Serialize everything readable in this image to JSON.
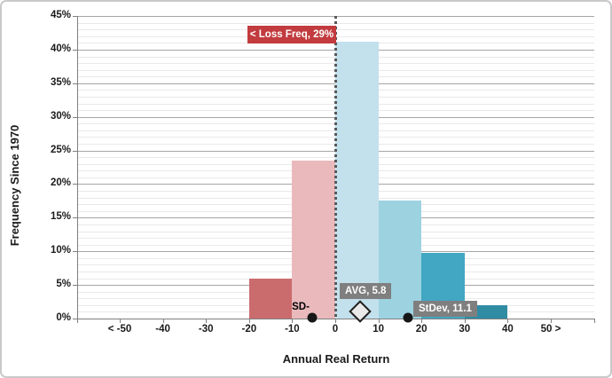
{
  "frame": {
    "background": "#FFFFFF",
    "border_color": "#C9C9C9"
  },
  "chart_data": {
    "type": "bar",
    "subtype": "histogram",
    "title": "",
    "xlabel": "Annual Real Return",
    "ylabel": "Frequency Since 1970",
    "x_tick_labels": [
      "< -50",
      "-40",
      "-30",
      "-20",
      "-10",
      "0",
      "10",
      "20",
      "30",
      "40",
      "50 >"
    ],
    "x_tick_values": [
      -50,
      -40,
      -30,
      -20,
      -10,
      0,
      10,
      20,
      30,
      40,
      50
    ],
    "y_ticks": [
      "0%",
      "5%",
      "10%",
      "15%",
      "20%",
      "25%",
      "30%",
      "35%",
      "40%",
      "45%"
    ],
    "ylim": [
      0,
      45
    ],
    "y_major_step": 5,
    "y_minor_step": 1,
    "grid": "horizontal major and minor gridlines on",
    "legend": "none",
    "bins": [
      {
        "from": -20,
        "to": -10,
        "value": 5.9,
        "color": "#CA6C6E"
      },
      {
        "from": -10,
        "to": 0,
        "value": 23.5,
        "color": "#EAB9BC"
      },
      {
        "from": 0,
        "to": 10,
        "value": 41.2,
        "color": "#C3E1ED"
      },
      {
        "from": 10,
        "to": 20,
        "value": 17.6,
        "color": "#9DD2E1"
      },
      {
        "from": 20,
        "to": 30,
        "value": 9.8,
        "color": "#41A7C2"
      },
      {
        "from": 30,
        "to": 40,
        "value": 2.0,
        "color": "#2F8CA3"
      }
    ],
    "markers": {
      "avg": {
        "value": 5.8,
        "shape": "diamond",
        "fill": "#E9E9E9",
        "stroke": "#1F1F1F"
      },
      "sd_minus": {
        "value": -5.3,
        "shape": "dot",
        "fill": "#161616"
      },
      "sd_plus": {
        "value": 16.9,
        "shape": "dot",
        "fill": "#161616"
      }
    },
    "zero_line": {
      "x": 0,
      "style": "dotted",
      "color": "#595959"
    },
    "colors": {
      "major_grid": "#A6A6A6",
      "minor_grid": "#E9E9E9",
      "axis": "#7F7F7F",
      "tick_text": "#1A1A1A"
    }
  },
  "annotations": {
    "loss_freq": {
      "text": "< Loss Freq, 29%",
      "bg": "#C23B3E",
      "fg": "#FFFFFF"
    },
    "avg": {
      "text": "AVG, 5.8",
      "bg": "#7F7F7F",
      "fg": "#FFFFFF"
    },
    "stdev": {
      "text": "StDev, 11.1",
      "bg": "#7F7F7F",
      "fg": "#FFFFFF"
    },
    "sd_minus": {
      "text": "SD-",
      "fg": "#000000"
    }
  }
}
